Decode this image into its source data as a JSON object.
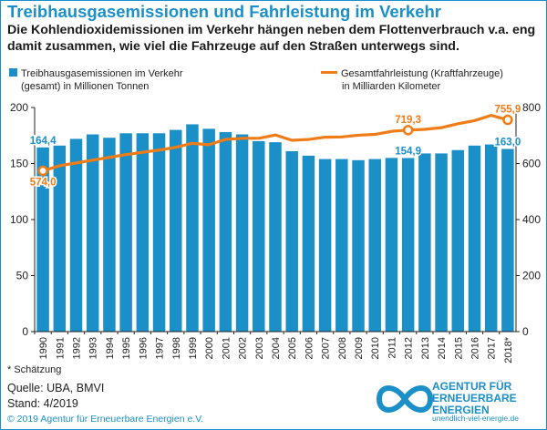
{
  "title": "Treibhausgasemissionen und Fahrleistung im Verkehr",
  "subtitle": "Die Kohlendioxidemissionen im Verkehr hängen neben dem Flottenverbrauch v.a. eng damit zusammen, wie viel die Fahrzeuge auf den Straßen unterwegs sind.",
  "legend": {
    "bars_line1": "Treibhausgasemissionen im Verkehr",
    "bars_line2": "(gesamt) in Millionen Tonnen",
    "line_line1": "Gesamtfahrleistung (Kraftfahrzeuge)",
    "line_line2": "in Milliarden Kilometer"
  },
  "footnote": "* Schätzung",
  "source": "Quelle: UBA, BMVI",
  "stand": "Stand:  4/2019",
  "copyright": "© 2019 Agentur für Erneuerbare Energien e.V.",
  "logo": {
    "line1": "AGENTUR FÜR",
    "line2": "ERNEUERBARE",
    "line3": "ENERGIEN",
    "url": "unendlich-viel-energie.de"
  },
  "colors": {
    "bar": "#1b8fc7",
    "line": "#f07c17",
    "accent": "#1b8fc7"
  },
  "chart_data": {
    "type": "bar",
    "categories": [
      "1990",
      "1991",
      "1992",
      "1993",
      "1994",
      "1995",
      "1996",
      "1997",
      "1998",
      "1999",
      "2000",
      "2001",
      "2002",
      "2003",
      "2004",
      "2005",
      "2006",
      "2007",
      "2008",
      "2009",
      "2010",
      "2011",
      "2012",
      "2013",
      "2014",
      "2015",
      "2016",
      "2017",
      "2018*"
    ],
    "series": [
      {
        "name": "Treibhausgasemissionen im Verkehr (gesamt) in Millionen Tonnen",
        "type": "bar",
        "axis": "left",
        "values": [
          164.4,
          166,
          172,
          176,
          173,
          177,
          177,
          177,
          180,
          185,
          181,
          178,
          176,
          170,
          169,
          161,
          157,
          154,
          154,
          153,
          154,
          155,
          154.9,
          159,
          159,
          162,
          166,
          167,
          163.0
        ]
      },
      {
        "name": "Gesamtfahrleistung (Kraftfahrzeuge) in Milliarden Kilometer",
        "type": "line",
        "axis": "right",
        "values": [
          574.0,
          592,
          602,
          612,
          622,
          632,
          640,
          648,
          658,
          672,
          667,
          686,
          690,
          690,
          702,
          683,
          686,
          694,
          695,
          701,
          704,
          715,
          719.3,
          722,
          728,
          742,
          753,
          772,
          755.9
        ]
      }
    ],
    "labels": [
      {
        "series": 0,
        "index": 0,
        "text": "164,4"
      },
      {
        "series": 0,
        "index": 22,
        "text": "154,9"
      },
      {
        "series": 0,
        "index": 28,
        "text": "163,0"
      },
      {
        "series": 1,
        "index": 0,
        "text": "574,0"
      },
      {
        "series": 1,
        "index": 22,
        "text": "719,3"
      },
      {
        "series": 1,
        "index": 28,
        "text": "755,9"
      }
    ],
    "y_left": {
      "ylim": [
        0,
        200
      ],
      "ticks": [
        0,
        50,
        100,
        150,
        200
      ]
    },
    "y_right": {
      "ylim": [
        0,
        800
      ],
      "ticks": [
        0,
        200,
        400,
        600,
        800
      ]
    },
    "grid": false,
    "legend_position": "top"
  }
}
